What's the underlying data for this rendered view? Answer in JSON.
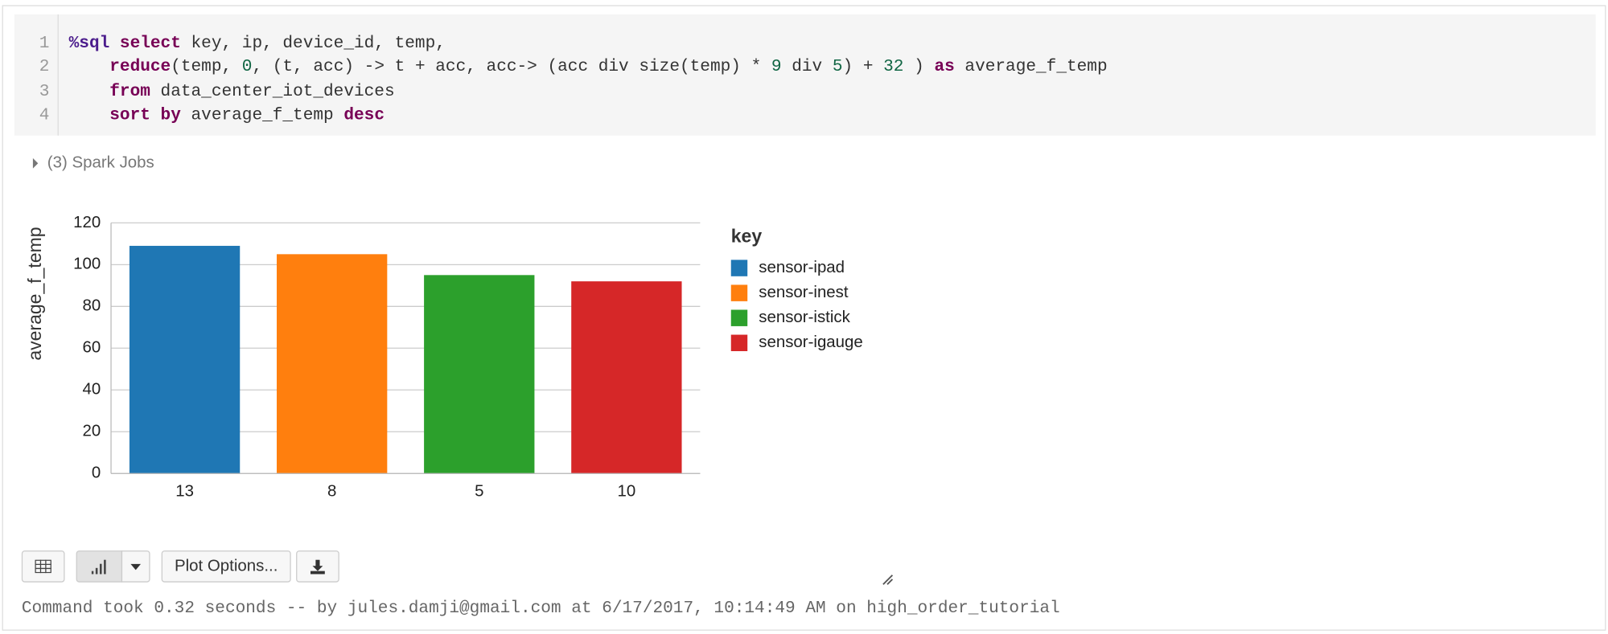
{
  "code": {
    "lines": [
      {
        "number": 1,
        "tokens": [
          {
            "text": "%sql",
            "color": "#4b1c8c",
            "bold": true
          },
          {
            "text": " select",
            "color": "#770055",
            "bold": true
          },
          {
            "text": " key, ip, device_id, temp,",
            "color": "#333333"
          }
        ]
      },
      {
        "number": 2,
        "tokens": [
          {
            "text": "    reduce",
            "color": "#770055",
            "bold": true
          },
          {
            "text": "(temp, ",
            "color": "#333333"
          },
          {
            "text": "0",
            "color": "#116644"
          },
          {
            "text": ", (t, acc) -> t + acc, acc-> (acc div size(temp) * ",
            "color": "#333333"
          },
          {
            "text": "9",
            "color": "#116644"
          },
          {
            "text": " div ",
            "color": "#333333"
          },
          {
            "text": "5",
            "color": "#116644"
          },
          {
            "text": ") + ",
            "color": "#333333"
          },
          {
            "text": "32",
            "color": "#116644"
          },
          {
            "text": " ) ",
            "color": "#333333"
          },
          {
            "text": "as",
            "color": "#770055",
            "bold": true
          },
          {
            "text": " average_f_temp",
            "color": "#333333"
          }
        ]
      },
      {
        "number": 3,
        "tokens": [
          {
            "text": "    from",
            "color": "#770055",
            "bold": true
          },
          {
            "text": " data_center_iot_devices",
            "color": "#333333"
          }
        ]
      },
      {
        "number": 4,
        "tokens": [
          {
            "text": "    sort by",
            "color": "#770055",
            "bold": true
          },
          {
            "text": " average_f_temp ",
            "color": "#333333"
          },
          {
            "text": "desc",
            "color": "#770055",
            "bold": true
          }
        ]
      }
    ]
  },
  "spark_jobs": "(3) Spark Jobs",
  "chart_data": {
    "type": "bar",
    "y_label": "average_f_temp",
    "legend_title": "key",
    "categories": [
      "13",
      "8",
      "5",
      "10"
    ],
    "series": [
      {
        "name": "sensor-ipad",
        "color": "#1f77b4",
        "values": [
          109,
          null,
          null,
          null
        ]
      },
      {
        "name": "sensor-inest",
        "color": "#ff7f0e",
        "values": [
          null,
          105,
          null,
          null
        ]
      },
      {
        "name": "sensor-istick",
        "color": "#2ca02c",
        "values": [
          null,
          null,
          95,
          null
        ]
      },
      {
        "name": "sensor-igauge",
        "color": "#d62728",
        "values": [
          null,
          null,
          null,
          92
        ]
      }
    ],
    "ylim": [
      0,
      120
    ],
    "yticks": [
      0,
      20,
      40,
      60,
      80,
      100,
      120
    ],
    "grid": true,
    "legend": "right"
  },
  "toolbar": {
    "plot_options": "Plot Options..."
  },
  "footer": "Command took 0.32 seconds -- by jules.damji@gmail.com at 6/17/2017, 10:14:49 AM on high_order_tutorial"
}
